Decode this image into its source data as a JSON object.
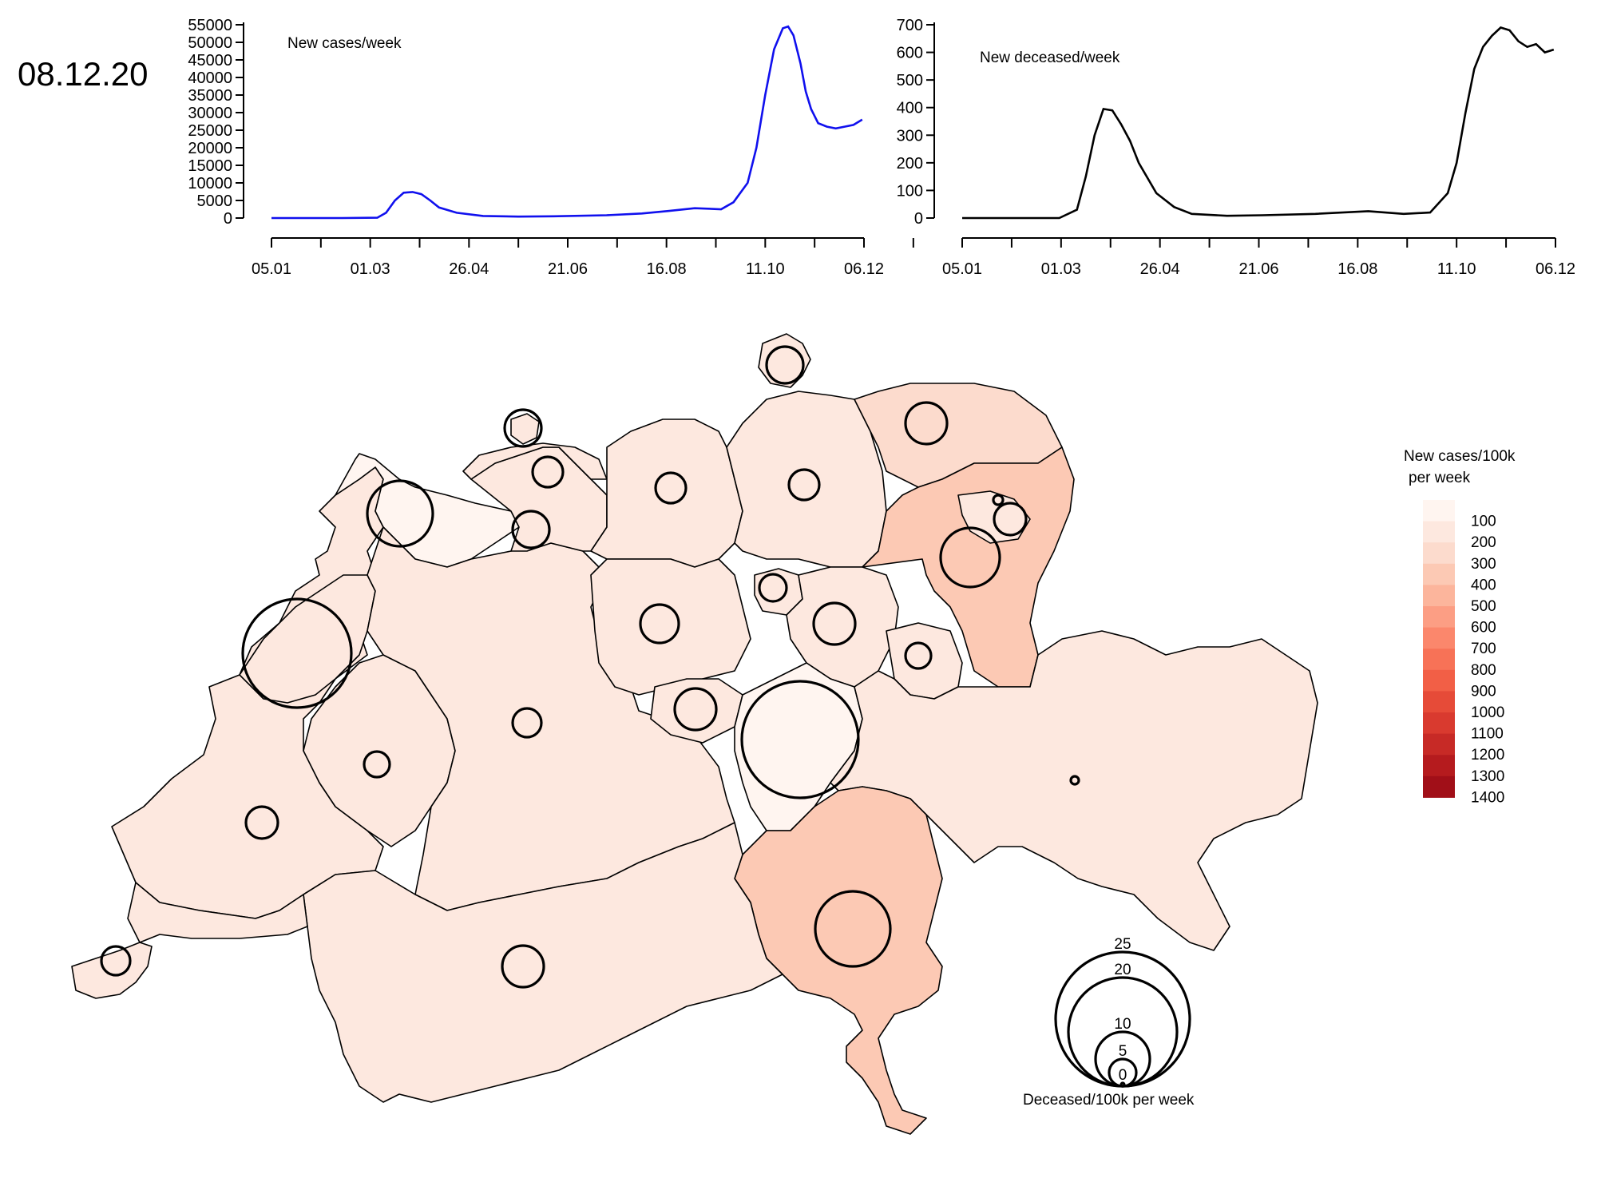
{
  "date": "08.12.20",
  "charts": {
    "cases": {
      "label": "New cases/week",
      "color": "#1010ee",
      "y_ticks": [
        0,
        5000,
        10000,
        15000,
        20000,
        25000,
        30000,
        35000,
        40000,
        45000,
        50000,
        55000
      ],
      "x_tick_labels": [
        "05.01",
        "01.03",
        "26.04",
        "21.06",
        "16.08",
        "11.10",
        "06.12"
      ]
    },
    "deaths": {
      "label": "New deceased/week",
      "color": "#000000",
      "y_ticks": [
        0,
        100,
        200,
        300,
        400,
        500,
        600,
        700
      ],
      "x_tick_labels": [
        "05.01",
        "01.03",
        "26.04",
        "21.06",
        "16.08",
        "11.10",
        "06.12"
      ]
    }
  },
  "chart_data": [
    {
      "type": "line",
      "title": "New cases/week",
      "x_unit": "days since 05.01",
      "ylim": [
        0,
        55000
      ],
      "x": [
        0,
        40,
        60,
        65,
        70,
        75,
        80,
        85,
        90,
        95,
        105,
        120,
        140,
        160,
        190,
        210,
        225,
        240,
        255,
        262,
        270,
        275,
        280,
        285,
        290,
        293,
        296,
        300,
        303,
        306,
        310,
        315,
        320,
        325,
        330,
        335
      ],
      "series": [
        {
          "name": "New cases/week",
          "values": [
            0,
            0,
            100,
            1500,
            5000,
            7200,
            7400,
            6800,
            5000,
            3000,
            1500,
            600,
            400,
            500,
            800,
            1300,
            2000,
            2800,
            2500,
            4500,
            10000,
            20000,
            35000,
            48000,
            54000,
            54500,
            52000,
            44000,
            36000,
            31000,
            27000,
            26000,
            25500,
            26000,
            26500,
            28000
          ]
        }
      ]
    },
    {
      "type": "line",
      "title": "New deceased/week",
      "x_unit": "days since 05.01",
      "ylim": [
        0,
        700
      ],
      "x": [
        0,
        55,
        65,
        70,
        75,
        80,
        85,
        90,
        95,
        100,
        110,
        120,
        130,
        150,
        170,
        200,
        230,
        250,
        265,
        275,
        280,
        285,
        290,
        295,
        300,
        305,
        310,
        315,
        320,
        325,
        330,
        335
      ],
      "series": [
        {
          "name": "New deceased/week",
          "values": [
            0,
            0,
            30,
            150,
            300,
            395,
            390,
            340,
            280,
            200,
            90,
            40,
            15,
            8,
            10,
            15,
            25,
            15,
            20,
            90,
            200,
            380,
            540,
            620,
            660,
            690,
            680,
            640,
            620,
            630,
            600,
            610
          ]
        }
      ]
    }
  ],
  "legend": {
    "title_line1": "New cases/100k",
    "title_line2": "per week",
    "levels": [
      100,
      200,
      300,
      400,
      500,
      600,
      700,
      800,
      900,
      1000,
      1100,
      1200,
      1300,
      1400
    ],
    "colors": [
      "#fff5f0",
      "#fde8df",
      "#fcdbcd",
      "#fcc9b4",
      "#fcb59c",
      "#fc9e84",
      "#fb876c",
      "#f77257",
      "#f25f46",
      "#e64b38",
      "#d93a2f",
      "#c72a26",
      "#b51b1e",
      "#a10f18"
    ]
  },
  "bubble_legend": {
    "title": "Deceased/100k per week",
    "values": [
      25,
      20,
      10,
      5,
      0
    ]
  }
}
